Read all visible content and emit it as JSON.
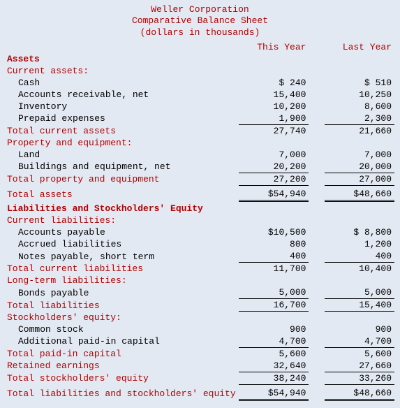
{
  "header": {
    "company": "Weller Corporation",
    "title": "Comparative Balance Sheet",
    "units": "(dollars in thousands)"
  },
  "cols": {
    "c1": "This Year",
    "c2": "Last Year"
  },
  "s1": {
    "title": "Assets"
  },
  "ca": {
    "header": "Current assets:",
    "cash": {
      "lbl": "Cash",
      "v1": "$   240",
      "v2": "$   510"
    },
    "ar": {
      "lbl": "Accounts receivable, net",
      "v1": "15,400",
      "v2": "10,250"
    },
    "inv": {
      "lbl": "Inventory",
      "v1": "10,200",
      "v2": "8,600"
    },
    "prepaid": {
      "lbl": "Prepaid expenses",
      "v1": "1,900",
      "v2": "2,300"
    },
    "total": {
      "lbl": "Total current assets",
      "v1": "27,740",
      "v2": "21,660"
    }
  },
  "pe": {
    "header": "Property and equipment:",
    "land": {
      "lbl": "Land",
      "v1": "7,000",
      "v2": "7,000"
    },
    "bldg": {
      "lbl": "Buildings and equipment, net",
      "v1": "20,200",
      "v2": "20,000"
    },
    "total": {
      "lbl": "Total property and equipment",
      "v1": "27,200",
      "v2": "27,000"
    }
  },
  "ta": {
    "lbl": "Total assets",
    "v1": "$54,940",
    "v2": "$48,660"
  },
  "s2": {
    "title": "Liabilities and Stockholders' Equity"
  },
  "cl": {
    "header": "Current liabilities:",
    "ap": {
      "lbl": "Accounts payable",
      "v1": "$10,500",
      "v2": "$ 8,800"
    },
    "accr": {
      "lbl": "Accrued liabilities",
      "v1": "800",
      "v2": "1,200"
    },
    "np": {
      "lbl": "Notes payable, short term",
      "v1": "400",
      "v2": "400"
    },
    "total": {
      "lbl": "Total current liabilities",
      "v1": "11,700",
      "v2": "10,400"
    }
  },
  "lt": {
    "header": "Long-term liabilities:",
    "bonds": {
      "lbl": "Bonds payable",
      "v1": "5,000",
      "v2": "5,000"
    },
    "total": {
      "lbl": "Total liabilities",
      "v1": "16,700",
      "v2": "15,400"
    }
  },
  "se": {
    "header": "Stockholders' equity:",
    "cs": {
      "lbl": "Common stock",
      "v1": "900",
      "v2": "900"
    },
    "apic": {
      "lbl": "Additional paid-in capital",
      "v1": "4,700",
      "v2": "4,700"
    },
    "tpic": {
      "lbl": "Total paid-in capital",
      "v1": "5,600",
      "v2": "5,600"
    },
    "re": {
      "lbl": "Retained earnings",
      "v1": "32,640",
      "v2": "27,660"
    },
    "tse": {
      "lbl": "Total stockholders' equity",
      "v1": "38,240",
      "v2": "33,260"
    }
  },
  "tlse": {
    "lbl": "Total liabilities and stockholders' equity",
    "v1": "$54,940",
    "v2": "$48,660"
  },
  "style": {
    "accent_color": "#b00000",
    "background_color": "#e3e9f2",
    "font_family": "Courier New",
    "font_size_pt": 10,
    "underline_color": "#000000"
  }
}
